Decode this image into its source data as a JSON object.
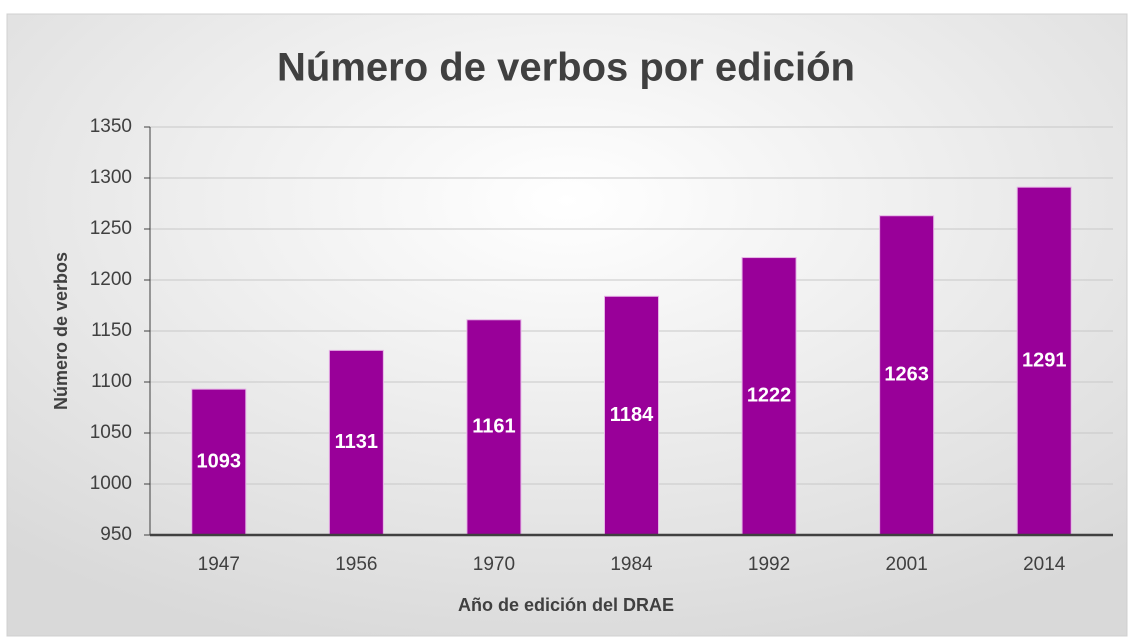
{
  "chart_data": {
    "type": "bar",
    "title": "Número de verbos por edición",
    "x_label": "Año de edición del  DRAE",
    "y_label": "Número de verbos",
    "categories": [
      "1947",
      "1956",
      "1970",
      "1984",
      "1992",
      "2001",
      "2014"
    ],
    "values": [
      1093,
      1131,
      1161,
      1184,
      1222,
      1263,
      1291
    ],
    "color": "#990099",
    "ylim": [
      950,
      1350
    ],
    "yticks": [
      950,
      1000,
      1050,
      1100,
      1150,
      1200,
      1250,
      1300,
      1350
    ],
    "grid": true
  }
}
